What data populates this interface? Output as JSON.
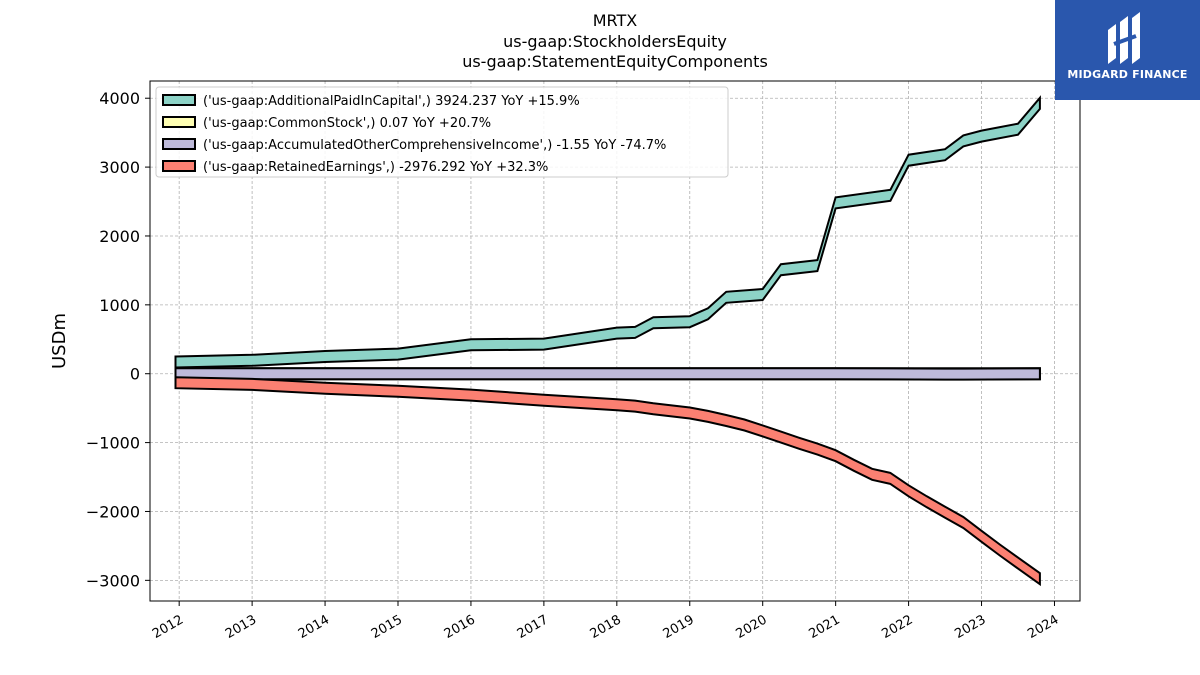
{
  "title": {
    "line1": "MRTX",
    "line2": "us-gaap:StockholdersEquity",
    "line3": "us-gaap:StatementEquityComponents"
  },
  "logo": {
    "text": "MIDGARD FINANCE",
    "color": "#2a57ad"
  },
  "chart_data": {
    "type": "area",
    "ylabel": "USDm",
    "xlabel": "",
    "ylim": [
      -3300,
      4250
    ],
    "xlim": [
      2011.6,
      2024.35
    ],
    "yticks": [
      4000,
      3000,
      2000,
      1000,
      0,
      -1000,
      -2000,
      -3000
    ],
    "ytick_labels": [
      "4000",
      "3000",
      "2000",
      "1000",
      "0",
      "−1000",
      "−2000",
      "−3000"
    ],
    "xticks": [
      2012,
      2013,
      2014,
      2015,
      2016,
      2017,
      2018,
      2019,
      2020,
      2021,
      2022,
      2023,
      2024
    ],
    "xtick_labels": [
      "2012",
      "2013",
      "2014",
      "2015",
      "2016",
      "2017",
      "2018",
      "2019",
      "2020",
      "2021",
      "2022",
      "2023",
      "2024"
    ],
    "grid": true,
    "legend_position": "top-left",
    "series": [
      {
        "name": "('us-gaap:AdditionalPaidInCapital',) 3924.237 YoY +15.9%",
        "color": "#8dd3c7",
        "points": [
          [
            2011.95,
            170
          ],
          [
            2013,
            195
          ],
          [
            2014,
            250
          ],
          [
            2015,
            285
          ],
          [
            2016,
            420
          ],
          [
            2017,
            430
          ],
          [
            2018,
            590
          ],
          [
            2018.25,
            600
          ],
          [
            2018.5,
            740
          ],
          [
            2019,
            755
          ],
          [
            2019.25,
            870
          ],
          [
            2019.5,
            1110
          ],
          [
            2020,
            1150
          ],
          [
            2020.25,
            1510
          ],
          [
            2020.75,
            1570
          ],
          [
            2021,
            2480
          ],
          [
            2021.75,
            2590
          ],
          [
            2022,
            3100
          ],
          [
            2022.5,
            3180
          ],
          [
            2022.75,
            3380
          ],
          [
            2023,
            3450
          ],
          [
            2023.5,
            3550
          ],
          [
            2023.8,
            3924.237
          ]
        ]
      },
      {
        "name": "('us-gaap:CommonStock',) 0.07 YoY +20.7%",
        "color": "#ffffb3",
        "points": [
          [
            2011.95,
            0.03
          ],
          [
            2023.8,
            0.07
          ]
        ]
      },
      {
        "name": "('us-gaap:AccumulatedOtherComprehensiveIncome',) -1.55 YoY -74.7%",
        "color": "#bebada",
        "points": [
          [
            2011.95,
            -0.2
          ],
          [
            2021,
            0.5
          ],
          [
            2022.5,
            -5
          ],
          [
            2022.75,
            -6
          ],
          [
            2023.8,
            -1.55
          ]
        ]
      },
      {
        "name": "('us-gaap:RetainedEarnings',) -2976.292 YoY +32.3%",
        "color": "#fb8072",
        "points": [
          [
            2011.95,
            -130
          ],
          [
            2013,
            -155
          ],
          [
            2014,
            -210
          ],
          [
            2015,
            -255
          ],
          [
            2016,
            -310
          ],
          [
            2017,
            -385
          ],
          [
            2018,
            -450
          ],
          [
            2018.25,
            -470
          ],
          [
            2018.5,
            -510
          ],
          [
            2019,
            -570
          ],
          [
            2019.25,
            -620
          ],
          [
            2019.5,
            -680
          ],
          [
            2019.75,
            -745
          ],
          [
            2020,
            -830
          ],
          [
            2020.25,
            -920
          ],
          [
            2020.5,
            -1010
          ],
          [
            2020.75,
            -1095
          ],
          [
            2021,
            -1190
          ],
          [
            2021.25,
            -1330
          ],
          [
            2021.5,
            -1460
          ],
          [
            2021.75,
            -1520
          ],
          [
            2022,
            -1700
          ],
          [
            2022.25,
            -1860
          ],
          [
            2022.5,
            -2010
          ],
          [
            2022.75,
            -2160
          ],
          [
            2023,
            -2360
          ],
          [
            2023.25,
            -2560
          ],
          [
            2023.5,
            -2750
          ],
          [
            2023.8,
            -2976.292
          ]
        ]
      }
    ]
  }
}
